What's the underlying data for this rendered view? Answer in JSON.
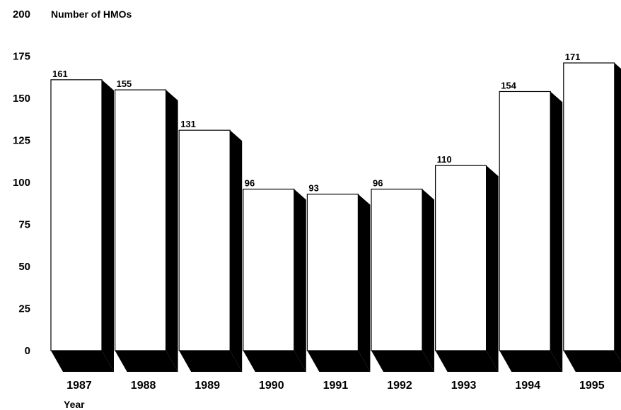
{
  "chart_data": {
    "type": "bar",
    "title": "",
    "ylabel": "Number of HMOs",
    "xlabel": "Year",
    "categories": [
      "1987",
      "1988",
      "1989",
      "1990",
      "1991",
      "1992",
      "1993",
      "1994",
      "1995"
    ],
    "values": [
      161,
      155,
      131,
      96,
      93,
      96,
      110,
      154,
      171
    ],
    "ylim": [
      0,
      200
    ],
    "yticks": [
      0,
      25,
      50,
      75,
      100,
      125,
      150,
      175,
      200
    ],
    "grid": false,
    "style": "3d-bar with black depth shading",
    "colors": {
      "bar_face": "#ffffff",
      "bar_side": "#000000",
      "outline": "#000000"
    }
  }
}
